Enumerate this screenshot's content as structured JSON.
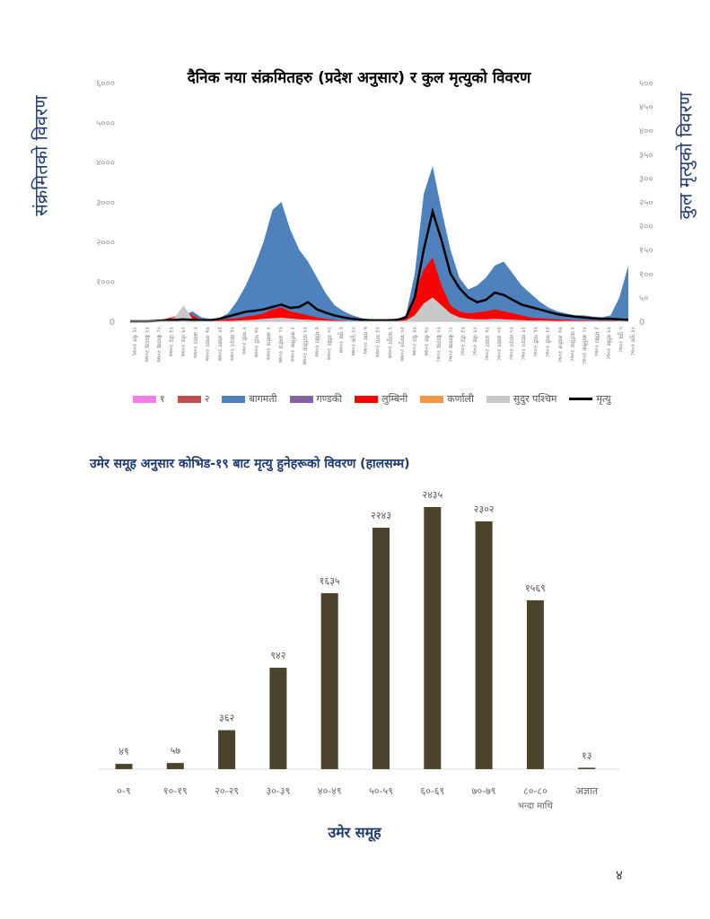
{
  "page_number": "४",
  "chart_data": [
    {
      "type": "area",
      "title": "दैनिक नया संक्रमितहरु (प्रदेश अनुसार) र कुल मृत्युको विवरण",
      "ylabel": "संक्रमितको विवरण",
      "ylabel_right": "कुल मृत्युको विवरण",
      "ylim": [
        0,
        6000
      ],
      "ylim_right": [
        0,
        500
      ],
      "yticks": [
        "0",
        "१०००",
        "२०००",
        "३०००",
        "४०००",
        "५०००",
        "६०००"
      ],
      "yticks_right": [
        "0",
        "५०",
        "१००",
        "१५०",
        "२००",
        "२५०",
        "३००",
        "३५०",
        "४००",
        "४५०",
        "५००"
      ],
      "xticks": [
        "२६ चैत २०७६",
        "१२ बैशाख २०७७",
        "२८ बैशाख २०७७",
        "१३ जेठ २०७७",
        "२९ जेठ २०७७",
        "१ असार २०७७",
        "१७ असार २०७७",
        "३१ असार २०७७",
        "१६ साउन २०७७",
        "१ भदौ २०७७",
        "१७ भदौ २०७७",
        "२ असोज २०७७",
        "१८ असोज २०७७",
        "३ कात्तिक २०७७",
        "१९ कात्तिक २०७७",
        "४ मंसिर २०७७",
        "२० मंसिर २०७७",
        "६ पुस २०७७",
        "२२ पुस २०७७",
        "७ माघ २०७७",
        "२३ माघ २०७७",
        "९ फागुन २०७७",
        "२५ फागुन २०७७",
        "११ चैत २०७७",
        "२७ चैत २०७७",
        "१२ बैशाख २०७८",
        "२८ बैशाख २०७८",
        "१३ जेठ २०७८",
        "२९ जेठ २०७८",
        "१४ असार २०७८",
        "३० असार २०७८",
        "१५ साउन २०७८",
        "३१ साउन २०७८",
        "१६ भदौ २०७८",
        "३२ भदौ २०७८",
        "१७ असोज २०७८",
        "२ कात्तिक २०७८",
        "१८ कात्तिक २०७८",
        "३ मंसिर २०७८",
        "१९ मंसिर २०७८",
        "५ पुस २०७८",
        "२१ पुस २०७८"
      ],
      "legend": [
        {
          "name": "१",
          "color": "#f07ee6",
          "kind": "area"
        },
        {
          "name": "२",
          "color": "#c0504d",
          "kind": "area"
        },
        {
          "name": "बागमती",
          "color": "#4f81bd",
          "kind": "area"
        },
        {
          "name": "गण्डकी",
          "color": "#8064a2",
          "kind": "area"
        },
        {
          "name": "लुम्बिनी",
          "color": "#ff0000",
          "kind": "area"
        },
        {
          "name": "कर्णाली",
          "color": "#f79646",
          "kind": "area"
        },
        {
          "name": "सुदुर पश्चिम",
          "color": "#c8c8c8",
          "kind": "area"
        },
        {
          "name": "मृत्यु",
          "color": "#000000",
          "kind": "line"
        }
      ],
      "series": [
        {
          "name": "बागमती",
          "color": "#4f81bd",
          "axis": "left",
          "values": [
            0,
            0,
            5,
            20,
            50,
            80,
            150,
            250,
            100,
            60,
            80,
            200,
            500,
            900,
            1400,
            2000,
            2800,
            3000,
            2300,
            1800,
            1500,
            1100,
            700,
            400,
            250,
            150,
            80,
            50,
            40,
            30,
            50,
            150,
            1200,
            3200,
            3900,
            2800,
            1800,
            1100,
            800,
            900,
            1100,
            1400,
            1500,
            1200,
            900,
            700,
            500,
            350,
            250,
            200,
            150,
            150,
            120,
            100,
            150,
            600,
            1400
          ]
        },
        {
          "name": "लुम्बिनी",
          "color": "#ff0000",
          "axis": "left",
          "values": [
            0,
            0,
            5,
            20,
            60,
            120,
            260,
            150,
            40,
            20,
            30,
            60,
            80,
            120,
            150,
            200,
            300,
            350,
            250,
            200,
            150,
            100,
            60,
            30,
            20,
            10,
            5,
            5,
            5,
            5,
            10,
            60,
            700,
            1300,
            1600,
            900,
            400,
            250,
            200,
            220,
            250,
            300,
            250,
            200,
            150,
            100,
            80,
            60,
            50,
            40,
            30,
            30,
            20,
            20,
            20,
            30,
            40
          ]
        },
        {
          "name": "सुदुर पश्चिम",
          "color": "#c8c8c8",
          "axis": "left",
          "values": [
            0,
            0,
            0,
            0,
            20,
            100,
            400,
            60,
            10,
            5,
            5,
            10,
            20,
            30,
            40,
            60,
            80,
            90,
            70,
            50,
            40,
            30,
            20,
            10,
            5,
            5,
            0,
            0,
            0,
            0,
            5,
            20,
            150,
            450,
            600,
            400,
            200,
            100,
            60,
            50,
            50,
            60,
            50,
            40,
            30,
            20,
            20,
            15,
            10,
            10,
            10,
            10,
            10,
            10,
            10,
            15,
            30
          ]
        },
        {
          "name": "मृत्यु",
          "color": "#000000",
          "axis": "right",
          "values": [
            0,
            0,
            0,
            1,
            2,
            3,
            4,
            3,
            2,
            2,
            5,
            10,
            15,
            20,
            22,
            25,
            30,
            35,
            28,
            30,
            40,
            25,
            18,
            12,
            8,
            5,
            3,
            2,
            2,
            2,
            3,
            8,
            50,
            150,
            230,
            170,
            100,
            70,
            50,
            40,
            45,
            60,
            55,
            45,
            35,
            30,
            25,
            20,
            15,
            12,
            10,
            8,
            6,
            5,
            5,
            4,
            3
          ]
        }
      ]
    },
    {
      "type": "bar",
      "title": "उमेर समूह अनुसार कोभिड-१९ बाट मृत्यु हुनेहरूको विवरण (हालसम्म)",
      "xlabel": "उमेर समूह",
      "ylabel": "",
      "ylim": [
        0,
        2435
      ],
      "color": "#4b432b",
      "categories": [
        "०-९",
        "१०-१९",
        "२०-२९",
        "३०-३९",
        "४०-४९",
        "५०-५९",
        "६०-६९",
        "७०-७९",
        "८०-८० भन्दा माथि",
        "अज्ञात"
      ],
      "values": [
        49,
        57,
        362,
        942,
        1635,
        2243,
        2435,
        2302,
        1569,
        13
      ],
      "labels": [
        "४९",
        "५७",
        "३६२",
        "९४२",
        "१६३५",
        "२२४३",
        "२४३५",
        "२३०२",
        "१५६९",
        "१३"
      ]
    }
  ]
}
